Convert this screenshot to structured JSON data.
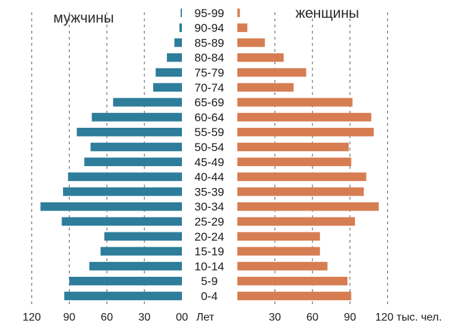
{
  "chart_data": {
    "type": "bar",
    "subtype": "population-pyramid",
    "categories": [
      "0-4",
      "5-9",
      "10-14",
      "15-19",
      "20-24",
      "25-29",
      "30-34",
      "35-39",
      "40-44",
      "45-49",
      "50-54",
      "55-59",
      "60-64",
      "65-69",
      "70-74",
      "75-79",
      "80-84",
      "85-89",
      "90-94",
      "95-99"
    ],
    "series": [
      {
        "name": "мужчины",
        "values": [
          94,
          90,
          74,
          65,
          62,
          96,
          113,
          95,
          91,
          78,
          73,
          84,
          72,
          55,
          23,
          21,
          12,
          6,
          2,
          1
        ]
      },
      {
        "name": "женщины",
        "values": [
          91,
          88,
          72,
          66,
          66,
          94,
          113,
          101,
          103,
          91,
          89,
          109,
          107,
          92,
          45,
          55,
          37,
          22,
          8,
          2
        ]
      }
    ],
    "colors": {
      "male": "#2e7d9a",
      "female": "#d77d52"
    },
    "left_title": "мужчины",
    "right_title": "женщины",
    "center_header": "Лет",
    "male_ticks": [
      "120",
      "90",
      "60",
      "30",
      "00"
    ],
    "female_ticks": [
      "30",
      "60",
      "90",
      "120 тыс. чел."
    ],
    "xlim": [
      0,
      120
    ],
    "grid": "vertical dashed lines at 30-unit intervals"
  }
}
